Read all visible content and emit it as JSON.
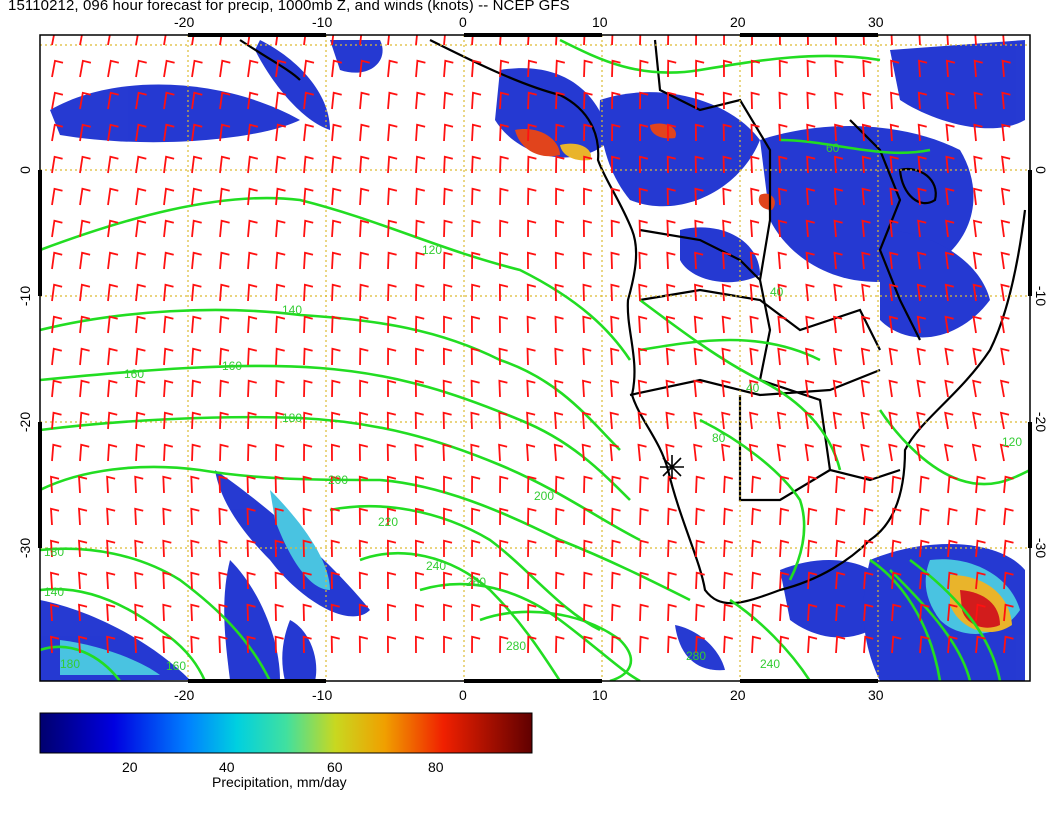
{
  "title": "15110212, 096 hour forecast for precip, 1000mb Z, and winds (knots) -- NCEP GFS",
  "map": {
    "lon_range": [
      -30,
      42
    ],
    "lat_range": [
      -40,
      10
    ],
    "lon_ticks": [
      "-20",
      "-10",
      "0",
      "10",
      "20",
      "30"
    ],
    "lat_ticks": [
      "0",
      "-10",
      "-20",
      "-30"
    ],
    "height_contour_labels": [
      "120",
      "140",
      "160",
      "160",
      "180",
      "200",
      "200",
      "220",
      "240",
      "260",
      "280",
      "280",
      "240",
      "180",
      "140",
      "180",
      "160",
      "120",
      "80",
      "40",
      "60",
      "40"
    ],
    "colors": {
      "height_contours": "#22dd22",
      "wind_barbs": "#ff1111",
      "coastlines": "#000000",
      "gridlines": "#ddbb33"
    }
  },
  "colorbar": {
    "caption": "Precipitation, mm/day",
    "ticks": [
      "20",
      "40",
      "60",
      "80"
    ],
    "range": [
      0,
      100
    ],
    "colors": [
      "#00008b",
      "#0000ff",
      "#00bfff",
      "#40e0d0",
      "#adff2f",
      "#ffd700",
      "#ff8c00",
      "#ff0000",
      "#8b0000"
    ]
  }
}
